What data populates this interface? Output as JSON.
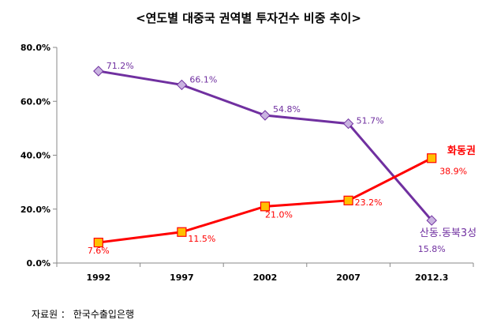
{
  "chart_data": {
    "type": "line",
    "title": "<연도별 대중국 권역별 투자건수 비중 추이>",
    "categories": [
      "1992",
      "1997",
      "2002",
      "2007",
      "2012.3"
    ],
    "ylim": [
      0,
      80
    ],
    "y_ticks": [
      "0.0%",
      "20.0%",
      "40.0%",
      "60.0%",
      "80.0%"
    ],
    "grid": false,
    "series": [
      {
        "name": "산동.동북3성",
        "color": "#7030a0",
        "marker_fill": "#c9b3e0",
        "marker": "diamond",
        "values": [
          71.2,
          66.1,
          54.8,
          51.7,
          15.8
        ],
        "labels": [
          "71.2%",
          "66.1%",
          "54.8%",
          "51.7%",
          "15.8%"
        ]
      },
      {
        "name": "화동권",
        "color": "#ff0000",
        "marker_fill": "#ffc000",
        "marker": "square",
        "values": [
          7.6,
          11.5,
          21.0,
          23.2,
          38.9
        ],
        "labels": [
          "7.6%",
          "11.5%",
          "21.0%",
          "23.2%",
          "38.9%"
        ]
      }
    ]
  },
  "footer": {
    "source": "자료원 ： 한국수출입은행"
  }
}
